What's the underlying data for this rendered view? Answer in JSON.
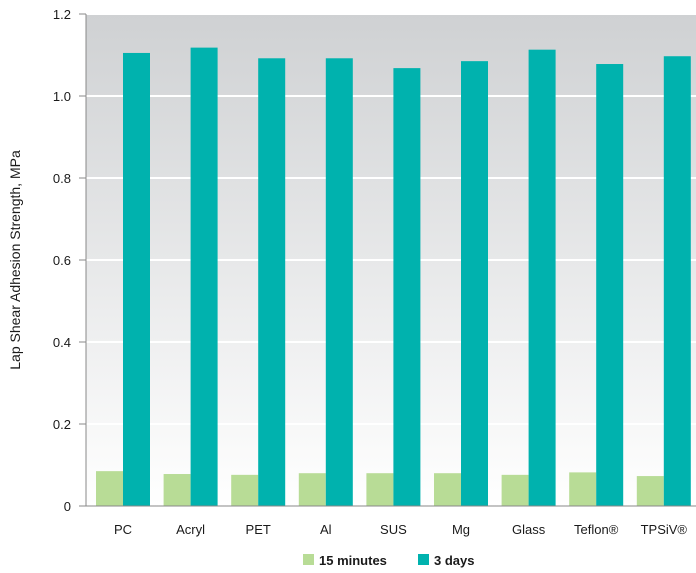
{
  "chart_data": {
    "type": "bar",
    "title": "",
    "ylabel": "Lap Shear Adhesion Strength, MPa",
    "xlabel": "",
    "ylim": [
      0,
      1.2
    ],
    "yticks": [
      "0",
      "0.2",
      "0.4",
      "0.6",
      "0.8",
      "1.0",
      "1.2"
    ],
    "categories": [
      "PC",
      "Acryl",
      "PET",
      "Al",
      "SUS",
      "Mg",
      "Glass",
      "Teflon®",
      "TPSiV®"
    ],
    "series": [
      {
        "name": "15 minutes",
        "color": "#b8dc96",
        "values": [
          0.085,
          0.078,
          0.076,
          0.08,
          0.08,
          0.08,
          0.076,
          0.082,
          0.073
        ]
      },
      {
        "name": "3 days",
        "color": "#00b2ae",
        "values": [
          1.105,
          1.118,
          1.092,
          1.092,
          1.068,
          1.085,
          1.113,
          1.078,
          1.097
        ]
      }
    ],
    "grid": true,
    "legend_position": "bottom-center"
  }
}
